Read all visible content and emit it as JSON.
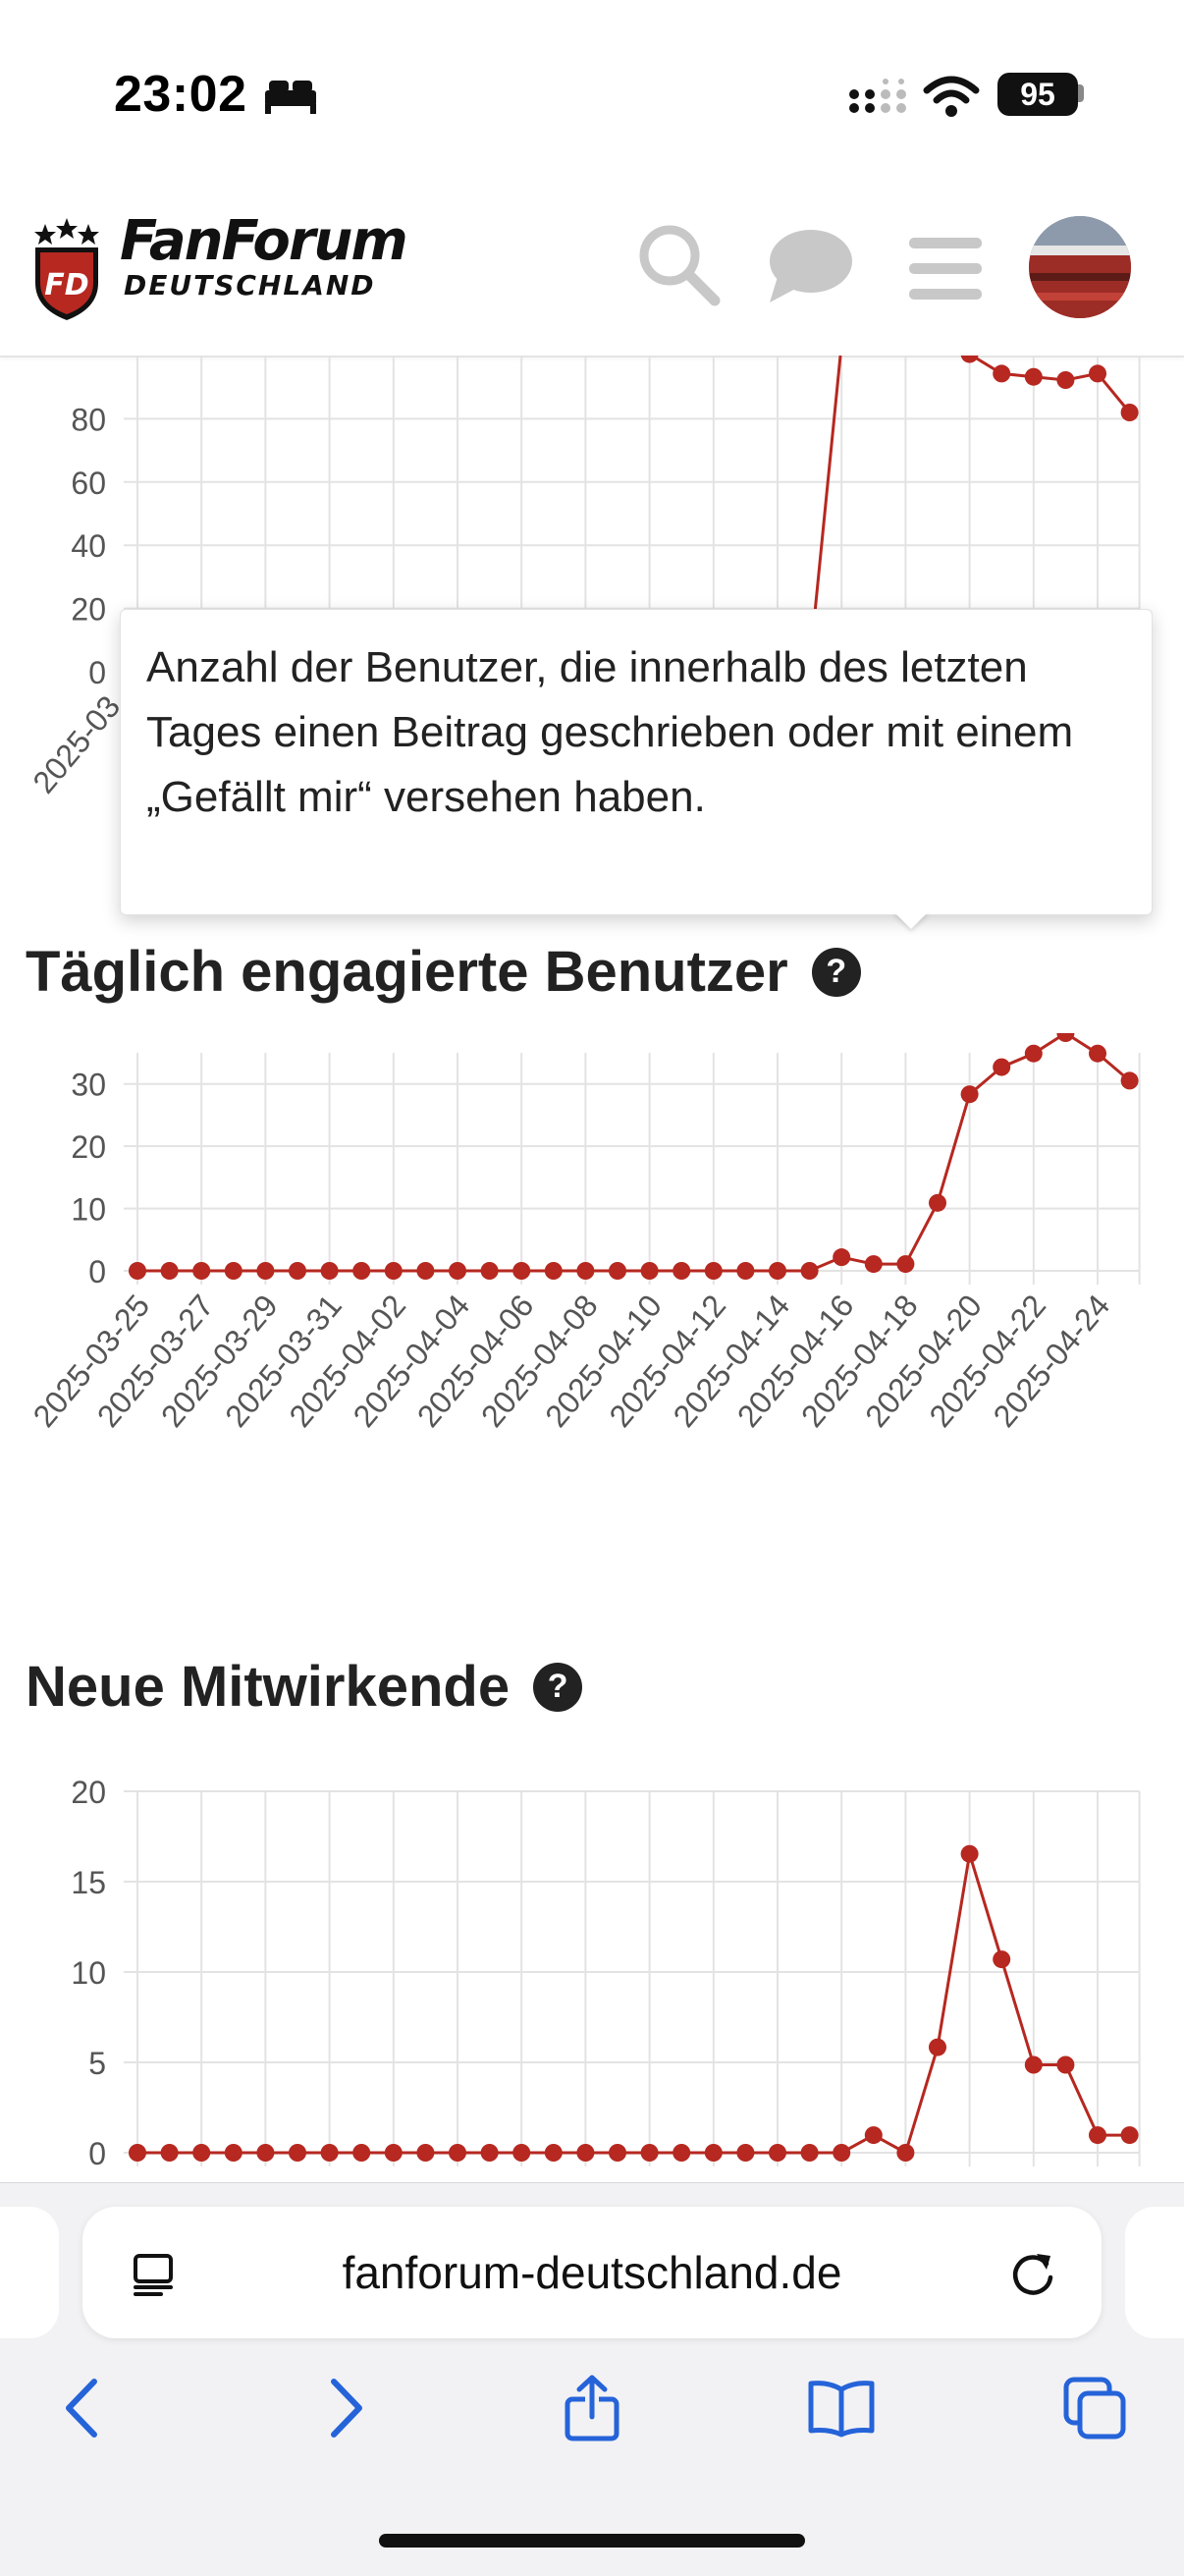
{
  "status_bar": {
    "time": "23:02",
    "battery": "95"
  },
  "header": {
    "logo_title": "FanForum",
    "logo_subtitle": "DEUTSCHLAND",
    "logo_badge": "FFD"
  },
  "colors": {
    "accent": "#b62820",
    "grid": "#e3e3e3",
    "tick_text": "#555555"
  },
  "tooltip": {
    "text": "Anzahl der Benutzer, die innerhalb des letzten Tages einen Beitrag geschrieben oder mit einem „Gefällt mir“ versehen haben."
  },
  "sections": {
    "engaged_title": "Täglich engagierte Benutzer",
    "contributors_title": "Neue Mitwirkende"
  },
  "chart_data": [
    {
      "type": "line",
      "partial": true,
      "y_ticks": [
        "80",
        "60",
        "40",
        "20",
        "0"
      ],
      "ylim": [
        0,
        100
      ],
      "visible_x_labels": [
        "2025-03",
        "20"
      ],
      "series": [
        {
          "values_visible_tail": [
            98,
            92,
            91,
            90,
            92,
            80
          ]
        }
      ]
    },
    {
      "type": "line",
      "title": "Täglich engagierte Benutzer",
      "ylim": [
        0,
        35
      ],
      "y_ticks": [
        "30",
        "20",
        "10",
        "0"
      ],
      "x": [
        "2025-03-25",
        "2025-03-26",
        "2025-03-27",
        "2025-03-28",
        "2025-03-29",
        "2025-03-30",
        "2025-03-31",
        "2025-04-01",
        "2025-04-02",
        "2025-04-03",
        "2025-04-04",
        "2025-04-05",
        "2025-04-06",
        "2025-04-07",
        "2025-04-08",
        "2025-04-09",
        "2025-04-10",
        "2025-04-11",
        "2025-04-12",
        "2025-04-13",
        "2025-04-14",
        "2025-04-15",
        "2025-04-16",
        "2025-04-17",
        "2025-04-18",
        "2025-04-19",
        "2025-04-20",
        "2025-04-21",
        "2025-04-22",
        "2025-04-23",
        "2025-04-24",
        "2025-04-25"
      ],
      "x_tick_labels": [
        "2025-03-25",
        "2025-03-27",
        "2025-03-29",
        "2025-03-31",
        "2025-04-02",
        "2025-04-04",
        "2025-04-06",
        "2025-04-08",
        "2025-04-10",
        "2025-04-12",
        "2025-04-14",
        "2025-04-16",
        "2025-04-18",
        "2025-04-20",
        "2025-04-22",
        "2025-04-24"
      ],
      "series": [
        {
          "values": [
            0,
            0,
            0,
            0,
            0,
            0,
            0,
            0,
            0,
            0,
            0,
            0,
            0,
            0,
            0,
            0,
            0,
            0,
            0,
            0,
            0,
            0,
            2,
            1,
            1,
            10,
            26,
            30,
            32,
            35,
            32,
            28
          ]
        }
      ]
    },
    {
      "type": "line",
      "title": "Neue Mitwirkende",
      "ylim": [
        0,
        20
      ],
      "y_ticks": [
        "20",
        "15",
        "10",
        "5",
        "0"
      ],
      "series": [
        {
          "values": [
            0,
            0,
            0,
            0,
            0,
            0,
            0,
            0,
            0,
            0,
            0,
            0,
            0,
            0,
            0,
            0,
            0,
            0,
            0,
            0,
            0,
            0,
            0,
            1,
            0,
            6,
            17,
            11,
            5,
            5,
            1,
            1
          ]
        }
      ]
    }
  ],
  "browser": {
    "url": "fanforum-deutschland.de"
  }
}
